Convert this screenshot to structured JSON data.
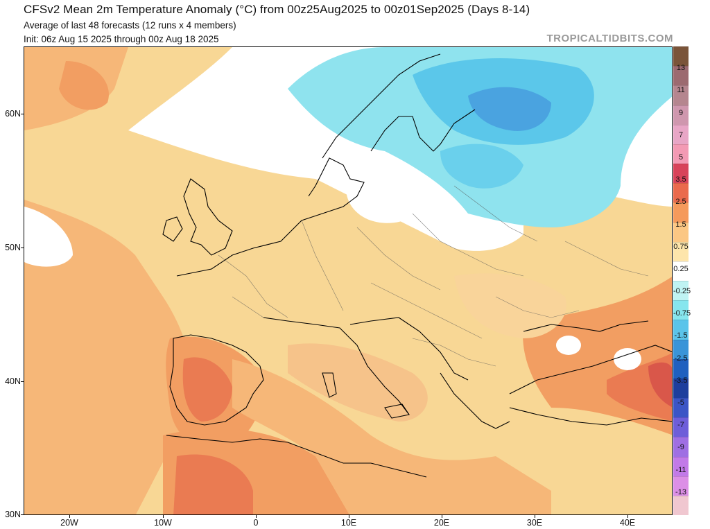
{
  "header": {
    "title": "CFSv2 Mean 2m Temperature Anomaly (°C) from 00z25Aug2025 to 00z01Sep2025 (Days 8-14)",
    "subtitle": "Average of last 48 forecasts (12 runs x 4 members)",
    "init": "Init: 06z Aug 15 2025 through 00z Aug 18 2025",
    "brand": "TROPICALTIDBITS.COM"
  },
  "axes": {
    "lat_labels": [
      "60N",
      "50N",
      "40N",
      "30N"
    ],
    "lon_labels": [
      "20W",
      "10W",
      "0",
      "10E",
      "20E",
      "30E",
      "40E"
    ]
  },
  "colorbar": {
    "labels": [
      "13",
      "11",
      "9",
      "7",
      "5",
      "3.5",
      "2.5",
      "1.5",
      "0.75",
      "0.25",
      "-0.25",
      "-0.75",
      "-1.5",
      "-2.5",
      "-3.5",
      "-5",
      "-7",
      "-9",
      "-11",
      "-13"
    ],
    "colors": [
      "#7a5439",
      "#9c6a70",
      "#b5868f",
      "#cf97ae",
      "#e8a6c6",
      "#f39ab4",
      "#d8435a",
      "#ea6a4d",
      "#f59a5c",
      "#fbc784",
      "#fde5ab",
      "#ffffff",
      "#bff3f3",
      "#86e6ee",
      "#5bc4ea",
      "#3a94d8",
      "#2060bf",
      "#1d3e9d",
      "#3b55c6",
      "#6e5ed9",
      "#9f6fe3",
      "#c27ae8",
      "#dc8fe6",
      "#f0c7d0"
    ]
  },
  "legend_icons": [
    "colorbar-scale"
  ]
}
